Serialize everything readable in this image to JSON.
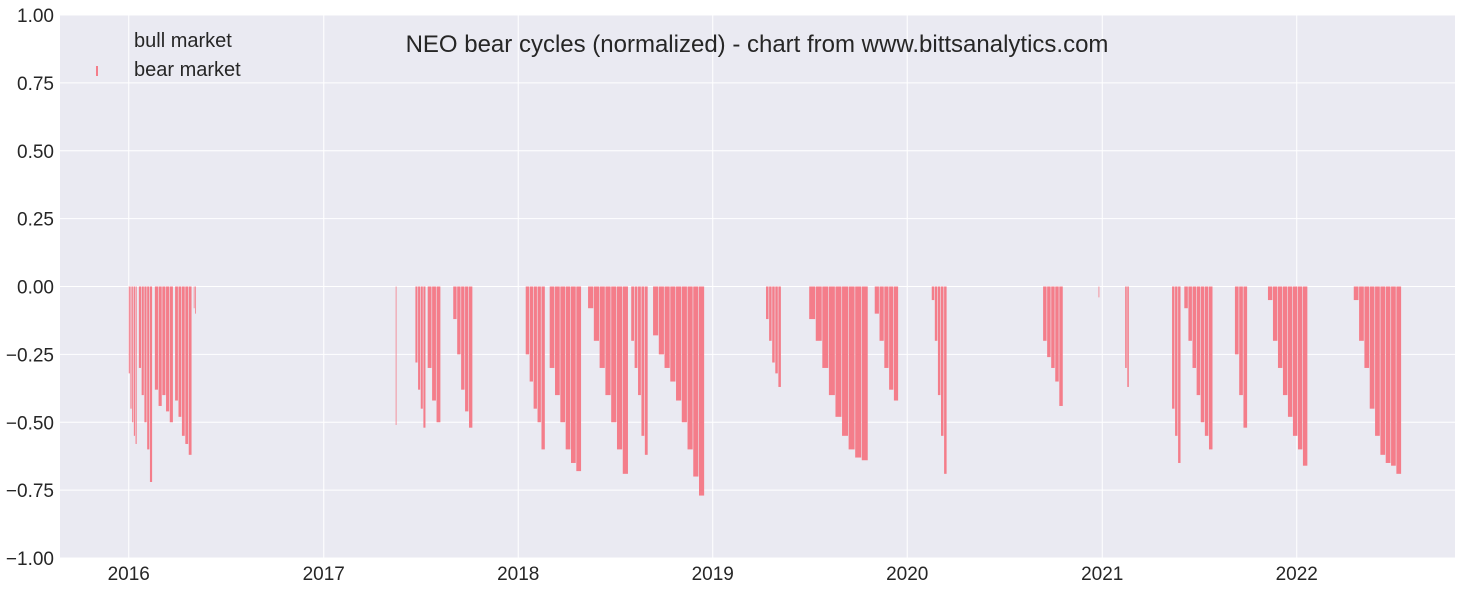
{
  "chart_data": {
    "type": "bar",
    "title": "NEO bear cycles (normalized)  - chart from www.bittsanalytics.com",
    "xlabel": "",
    "ylabel": "",
    "ylim": [
      -1.0,
      1.0
    ],
    "xlim": [
      "2015-08-25",
      "2022-10-25"
    ],
    "yticks": [
      1.0,
      0.75,
      0.5,
      0.25,
      0.0,
      -0.25,
      -0.5,
      -0.75,
      -1.0
    ],
    "ytick_labels": [
      "1.00",
      "0.75",
      "0.50",
      "0.25",
      "0.00",
      "−0.25",
      "−0.50",
      "−0.75",
      "−1.00"
    ],
    "xticks": [
      "2016-01-01",
      "2017-01-01",
      "2018-01-01",
      "2019-01-01",
      "2020-01-01",
      "2021-01-01",
      "2022-01-01"
    ],
    "xtick_labels": [
      "2016",
      "2017",
      "2018",
      "2019",
      "2020",
      "2021",
      "2022"
    ],
    "grid": true,
    "legend_position": "top-left",
    "colors": {
      "background": "#eaeaf2",
      "grid": "#ffffff",
      "bear": "#f47d8a",
      "bull": "#eaeaf2"
    },
    "series": [
      {
        "name": "bull market",
        "values": []
      },
      {
        "name": "bear market",
        "segments": [
          {
            "start": "2016-01-01",
            "end": "2016-01-17",
            "values": [
              -0.32,
              -0.45,
              -0.5,
              -0.55,
              -0.58
            ]
          },
          {
            "start": "2016-01-20",
            "end": "2016-02-15",
            "values": [
              -0.3,
              -0.4,
              -0.5,
              -0.6,
              -0.72
            ]
          },
          {
            "start": "2016-02-19",
            "end": "2016-03-25",
            "values": [
              -0.38,
              -0.44,
              -0.4,
              -0.46,
              -0.5
            ]
          },
          {
            "start": "2016-03-28",
            "end": "2016-04-29",
            "values": [
              -0.42,
              -0.48,
              -0.55,
              -0.58,
              -0.62
            ]
          },
          {
            "start": "2016-05-02",
            "end": "2016-05-07",
            "values": [
              -0.08,
              -0.1
            ]
          },
          {
            "start": "2017-05-16",
            "end": "2017-05-18",
            "values": [
              -0.51
            ]
          },
          {
            "start": "2017-06-22",
            "end": "2017-07-12",
            "values": [
              -0.28,
              -0.38,
              -0.45,
              -0.52
            ]
          },
          {
            "start": "2017-07-15",
            "end": "2017-08-09",
            "values": [
              -0.3,
              -0.42,
              -0.5
            ]
          },
          {
            "start": "2017-09-01",
            "end": "2017-10-08",
            "values": [
              -0.12,
              -0.25,
              -0.38,
              -0.46,
              -0.52
            ]
          },
          {
            "start": "2018-01-15",
            "end": "2018-02-21",
            "values": [
              -0.25,
              -0.35,
              -0.45,
              -0.5,
              -0.6
            ]
          },
          {
            "start": "2018-03-01",
            "end": "2018-04-30",
            "values": [
              -0.3,
              -0.4,
              -0.5,
              -0.6,
              -0.65,
              -0.68
            ]
          },
          {
            "start": "2018-05-12",
            "end": "2018-07-27",
            "values": [
              -0.08,
              -0.2,
              -0.3,
              -0.4,
              -0.5,
              -0.6,
              -0.69
            ]
          },
          {
            "start": "2018-08-01",
            "end": "2018-09-02",
            "values": [
              -0.2,
              -0.3,
              -0.4,
              -0.55,
              -0.62
            ]
          },
          {
            "start": "2018-09-11",
            "end": "2018-12-17",
            "values": [
              -0.18,
              -0.25,
              -0.3,
              -0.35,
              -0.42,
              -0.5,
              -0.6,
              -0.7,
              -0.77
            ]
          },
          {
            "start": "2019-04-11",
            "end": "2019-05-10",
            "values": [
              -0.12,
              -0.2,
              -0.28,
              -0.32,
              -0.37
            ]
          },
          {
            "start": "2019-07-01",
            "end": "2019-10-20",
            "values": [
              -0.12,
              -0.2,
              -0.3,
              -0.4,
              -0.48,
              -0.55,
              -0.6,
              -0.63,
              -0.64
            ]
          },
          {
            "start": "2019-11-01",
            "end": "2019-12-16",
            "values": [
              -0.1,
              -0.2,
              -0.3,
              -0.38,
              -0.42
            ]
          },
          {
            "start": "2020-02-16",
            "end": "2020-03-16",
            "values": [
              -0.05,
              -0.2,
              -0.4,
              -0.55,
              -0.69
            ]
          },
          {
            "start": "2020-09-12",
            "end": "2020-10-20",
            "values": [
              -0.2,
              -0.26,
              -0.3,
              -0.35,
              -0.44
            ]
          },
          {
            "start": "2020-12-25",
            "end": "2020-12-27",
            "values": [
              -0.04
            ]
          },
          {
            "start": "2021-02-13",
            "end": "2021-02-21",
            "values": [
              -0.3,
              -0.37
            ]
          },
          {
            "start": "2021-05-12",
            "end": "2021-05-29",
            "values": [
              -0.45,
              -0.55,
              -0.65
            ]
          },
          {
            "start": "2021-06-04",
            "end": "2021-07-28",
            "values": [
              -0.08,
              -0.2,
              -0.3,
              -0.4,
              -0.5,
              -0.55,
              -0.6
            ]
          },
          {
            "start": "2021-09-07",
            "end": "2021-10-01",
            "values": [
              -0.25,
              -0.4,
              -0.52
            ]
          },
          {
            "start": "2021-11-08",
            "end": "2022-01-22",
            "values": [
              -0.05,
              -0.2,
              -0.3,
              -0.4,
              -0.48,
              -0.55,
              -0.6,
              -0.66
            ]
          },
          {
            "start": "2022-04-18",
            "end": "2022-07-17",
            "values": [
              -0.05,
              -0.2,
              -0.3,
              -0.45,
              -0.55,
              -0.62,
              -0.65,
              -0.66,
              -0.69
            ]
          }
        ]
      }
    ]
  }
}
